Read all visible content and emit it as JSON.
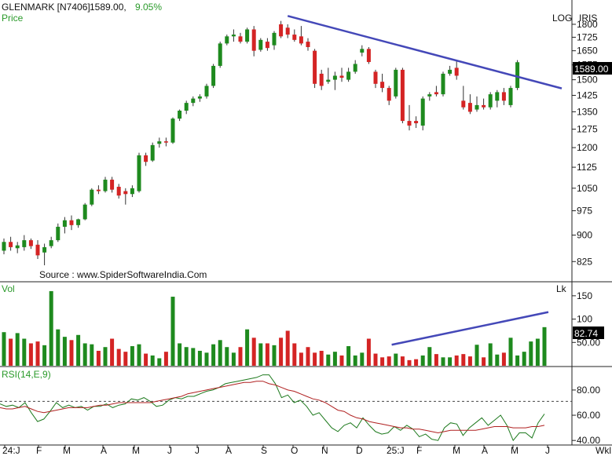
{
  "header": {
    "symbol_text": "GLENMARK [N7406]",
    "price_text": "1589.00,",
    "change_text": "9.05%",
    "price_label": "Price",
    "scale_mode": "LOG",
    "app_name": "IRIS",
    "source_text": "Source : www.SpiderSoftwareIndia.Com"
  },
  "volume_panel": {
    "label": "Vol",
    "unit": "Lk"
  },
  "rsi_panel": {
    "label": "RSI(14,E,9)"
  },
  "period_label": "Wkl",
  "last_price_badge": "1589.00",
  "last_volume_badge": "82.74",
  "colors": {
    "up": "#1e8a1e",
    "down": "#d42424",
    "trendline": "#4448b8",
    "rsi_line": "#1e7a1e",
    "rsi_signal": "#b02020",
    "price_label": "#2a9a2a"
  },
  "chart_data": [
    {
      "type": "candlestick",
      "scale": "log",
      "ylim": [
        780,
        1900
      ],
      "y_ticks": [
        "1800",
        "1725",
        "1650",
        "1575",
        "1500",
        "1425",
        "1350",
        "1275",
        "1200",
        "1125",
        "1050",
        "975",
        "900",
        "825"
      ],
      "x_ticks": [
        "24:J",
        "F",
        "M",
        "A",
        "M",
        "J",
        "J",
        "A",
        "S",
        "O",
        "N",
        "D",
        "25:J",
        "F",
        "M",
        "A",
        "M",
        "J"
      ],
      "candles": [
        {
          "o": 855,
          "h": 890,
          "l": 845,
          "c": 880
        },
        {
          "o": 880,
          "h": 895,
          "l": 855,
          "c": 865
        },
        {
          "o": 862,
          "h": 880,
          "l": 848,
          "c": 870
        },
        {
          "o": 865,
          "h": 900,
          "l": 855,
          "c": 885
        },
        {
          "o": 885,
          "h": 890,
          "l": 860,
          "c": 868
        },
        {
          "o": 872,
          "h": 885,
          "l": 832,
          "c": 842
        },
        {
          "o": 850,
          "h": 875,
          "l": 815,
          "c": 865
        },
        {
          "o": 868,
          "h": 895,
          "l": 862,
          "c": 885
        },
        {
          "o": 885,
          "h": 935,
          "l": 880,
          "c": 925
        },
        {
          "o": 925,
          "h": 955,
          "l": 905,
          "c": 945
        },
        {
          "o": 945,
          "h": 960,
          "l": 915,
          "c": 930
        },
        {
          "o": 930,
          "h": 950,
          "l": 922,
          "c": 948
        },
        {
          "o": 948,
          "h": 1000,
          "l": 945,
          "c": 995
        },
        {
          "o": 995,
          "h": 1050,
          "l": 990,
          "c": 1045
        },
        {
          "o": 1045,
          "h": 1060,
          "l": 1030,
          "c": 1040
        },
        {
          "o": 1040,
          "h": 1090,
          "l": 1035,
          "c": 1080
        },
        {
          "o": 1080,
          "h": 1090,
          "l": 1035,
          "c": 1045
        },
        {
          "o": 1055,
          "h": 1065,
          "l": 1015,
          "c": 1025
        },
        {
          "o": 1040,
          "h": 1050,
          "l": 995,
          "c": 1030
        },
        {
          "o": 1030,
          "h": 1060,
          "l": 1020,
          "c": 1050
        },
        {
          "o": 1040,
          "h": 1180,
          "l": 1035,
          "c": 1170
        },
        {
          "o": 1170,
          "h": 1180,
          "l": 1130,
          "c": 1145
        },
        {
          "o": 1150,
          "h": 1220,
          "l": 1145,
          "c": 1210
        },
        {
          "o": 1215,
          "h": 1240,
          "l": 1200,
          "c": 1225
        },
        {
          "o": 1225,
          "h": 1240,
          "l": 1205,
          "c": 1220
        },
        {
          "o": 1220,
          "h": 1325,
          "l": 1215,
          "c": 1320
        },
        {
          "o": 1320,
          "h": 1360,
          "l": 1310,
          "c": 1355
        },
        {
          "o": 1355,
          "h": 1400,
          "l": 1340,
          "c": 1390
        },
        {
          "o": 1390,
          "h": 1420,
          "l": 1375,
          "c": 1410
        },
        {
          "o": 1410,
          "h": 1430,
          "l": 1395,
          "c": 1420
        },
        {
          "o": 1420,
          "h": 1480,
          "l": 1410,
          "c": 1470
        },
        {
          "o": 1470,
          "h": 1580,
          "l": 1460,
          "c": 1570
        },
        {
          "o": 1570,
          "h": 1700,
          "l": 1560,
          "c": 1690
        },
        {
          "o": 1690,
          "h": 1740,
          "l": 1680,
          "c": 1730
        },
        {
          "o": 1730,
          "h": 1770,
          "l": 1700,
          "c": 1740
        },
        {
          "o": 1730,
          "h": 1750,
          "l": 1690,
          "c": 1700
        },
        {
          "o": 1700,
          "h": 1780,
          "l": 1690,
          "c": 1770
        },
        {
          "o": 1770,
          "h": 1790,
          "l": 1620,
          "c": 1650
        },
        {
          "o": 1655,
          "h": 1720,
          "l": 1645,
          "c": 1710
        },
        {
          "o": 1700,
          "h": 1720,
          "l": 1650,
          "c": 1665
        },
        {
          "o": 1680,
          "h": 1760,
          "l": 1655,
          "c": 1750
        },
        {
          "o": 1800,
          "h": 1820,
          "l": 1720,
          "c": 1730
        },
        {
          "o": 1780,
          "h": 1800,
          "l": 1720,
          "c": 1740
        },
        {
          "o": 1740,
          "h": 1770,
          "l": 1700,
          "c": 1710
        },
        {
          "o": 1730,
          "h": 1790,
          "l": 1680,
          "c": 1690
        },
        {
          "o": 1700,
          "h": 1720,
          "l": 1650,
          "c": 1670
        },
        {
          "o": 1650,
          "h": 1660,
          "l": 1460,
          "c": 1480
        },
        {
          "o": 1530,
          "h": 1550,
          "l": 1450,
          "c": 1470
        },
        {
          "o": 1490,
          "h": 1560,
          "l": 1480,
          "c": 1500
        },
        {
          "o": 1500,
          "h": 1540,
          "l": 1450,
          "c": 1520
        },
        {
          "o": 1520,
          "h": 1560,
          "l": 1490,
          "c": 1510
        },
        {
          "o": 1500,
          "h": 1560,
          "l": 1490,
          "c": 1540
        },
        {
          "o": 1540,
          "h": 1600,
          "l": 1530,
          "c": 1580
        },
        {
          "o": 1640,
          "h": 1680,
          "l": 1620,
          "c": 1660
        },
        {
          "o": 1660,
          "h": 1670,
          "l": 1580,
          "c": 1590
        },
        {
          "o": 1540,
          "h": 1550,
          "l": 1460,
          "c": 1480
        },
        {
          "o": 1490,
          "h": 1530,
          "l": 1440,
          "c": 1460
        },
        {
          "o": 1460,
          "h": 1470,
          "l": 1380,
          "c": 1400
        },
        {
          "o": 1420,
          "h": 1560,
          "l": 1410,
          "c": 1550
        },
        {
          "o": 1550,
          "h": 1560,
          "l": 1300,
          "c": 1310
        },
        {
          "o": 1310,
          "h": 1380,
          "l": 1270,
          "c": 1290
        },
        {
          "o": 1310,
          "h": 1330,
          "l": 1280,
          "c": 1300
        },
        {
          "o": 1290,
          "h": 1420,
          "l": 1270,
          "c": 1410
        },
        {
          "o": 1420,
          "h": 1440,
          "l": 1400,
          "c": 1430
        },
        {
          "o": 1440,
          "h": 1470,
          "l": 1420,
          "c": 1430
        },
        {
          "o": 1430,
          "h": 1540,
          "l": 1420,
          "c": 1530
        },
        {
          "o": 1530,
          "h": 1570,
          "l": 1520,
          "c": 1550
        },
        {
          "o": 1560,
          "h": 1600,
          "l": 1500,
          "c": 1520
        },
        {
          "o": 1400,
          "h": 1470,
          "l": 1360,
          "c": 1370
        },
        {
          "o": 1390,
          "h": 1430,
          "l": 1340,
          "c": 1350
        },
        {
          "o": 1360,
          "h": 1420,
          "l": 1350,
          "c": 1380
        },
        {
          "o": 1380,
          "h": 1410,
          "l": 1360,
          "c": 1370
        },
        {
          "o": 1370,
          "h": 1440,
          "l": 1360,
          "c": 1430
        },
        {
          "o": 1400,
          "h": 1450,
          "l": 1370,
          "c": 1440
        },
        {
          "o": 1440,
          "h": 1460,
          "l": 1380,
          "c": 1400
        },
        {
          "o": 1380,
          "h": 1470,
          "l": 1370,
          "c": 1460
        },
        {
          "o": 1460,
          "h": 1600,
          "l": 1450,
          "c": 1589
        }
      ],
      "trendline": {
        "from_index": 42,
        "from_value": 1850,
        "to_index": 80,
        "to_value": 1480
      }
    },
    {
      "type": "bar",
      "ylim": [
        0,
        175
      ],
      "y_ticks": [
        "150",
        "100",
        "50.00"
      ],
      "values": [
        72,
        58,
        70,
        58,
        48,
        52,
        44,
        160,
        78,
        62,
        55,
        66,
        48,
        46,
        32,
        40,
        58,
        36,
        30,
        42,
        46,
        26,
        22,
        16,
        30,
        148,
        48,
        40,
        38,
        32,
        28,
        46,
        55,
        40,
        28,
        40,
        78,
        60,
        48,
        48,
        44,
        60,
        75,
        48,
        28,
        40,
        28,
        32,
        24,
        30,
        22,
        42,
        22,
        28,
        58,
        26,
        18,
        20,
        26,
        20,
        12,
        14,
        22,
        40,
        25,
        18,
        18,
        22,
        25,
        20,
        45,
        18,
        48,
        24,
        28,
        60,
        22,
        30,
        52,
        58,
        82.74
      ],
      "trendline": {
        "from_index": 56,
        "from_value": 45,
        "to_index": 80,
        "to_value": 115
      }
    },
    {
      "type": "line",
      "ylim": [
        37,
        98
      ],
      "y_ticks": [
        "80.00",
        "60.00",
        "40.00"
      ],
      "reference_line": 71,
      "series": [
        {
          "values": [
            69,
            67,
            68,
            66,
            70,
            62,
            55,
            57,
            63,
            70,
            66,
            68,
            66,
            67,
            64,
            67,
            67,
            69,
            66,
            68,
            69,
            73,
            72,
            74,
            71,
            67,
            68,
            72,
            74,
            73,
            75,
            75,
            77,
            79,
            80,
            82,
            85,
            86,
            87,
            88,
            89,
            90,
            92,
            92,
            85,
            74,
            76,
            70,
            72,
            67,
            60,
            62,
            56,
            50,
            47,
            52,
            54,
            50,
            58,
            52,
            47,
            45,
            46,
            51,
            48,
            52,
            49,
            43,
            45,
            41,
            40,
            50,
            54,
            53,
            44,
            50,
            54,
            58,
            52,
            56,
            60,
            52,
            40,
            46,
            46,
            42,
            54,
            61
          ]
        },
        {
          "values": [
            66,
            65,
            65,
            66,
            67,
            65,
            63,
            62,
            63,
            64,
            65,
            66,
            66,
            66,
            66,
            67,
            68,
            68,
            69,
            70,
            70,
            70,
            70,
            70,
            70,
            71,
            72,
            73,
            74,
            75,
            77,
            78,
            79,
            80,
            81,
            82,
            83,
            84,
            85,
            86,
            86,
            87,
            87,
            85,
            84,
            82,
            80,
            79,
            77,
            75,
            73,
            72,
            70,
            67,
            64,
            63,
            60,
            58,
            57,
            55,
            54,
            53,
            52,
            51,
            50,
            50,
            49,
            49,
            48,
            47,
            46,
            47,
            48,
            48,
            48,
            48,
            48,
            49,
            50,
            51,
            51,
            51,
            50,
            50,
            50,
            51,
            51,
            52
          ]
        }
      ]
    }
  ]
}
